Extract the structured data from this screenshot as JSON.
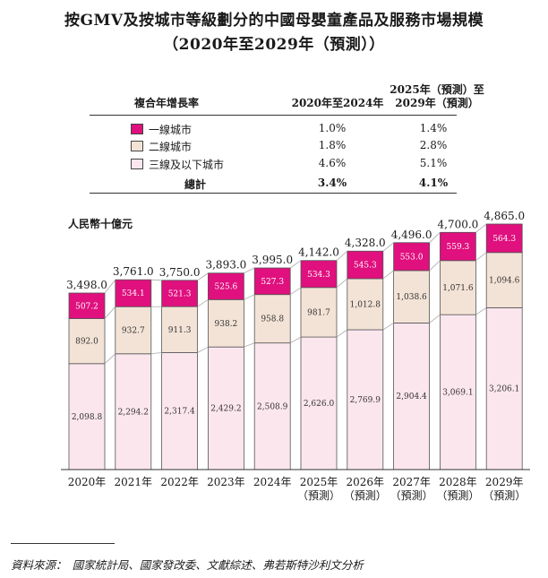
{
  "title_line1": "按GMV及按城市等級劃分的中國母嬰童產品及服務市場規模",
  "title_line2": "（2020年至2029年（預測））",
  "cagr_table": {
    "header_label": "複合年增長率",
    "col1_header": "2020年至2024年",
    "col2_header_line1": "2025年（預測）至",
    "col2_header_line2": "2029年（預測）",
    "rows": [
      {
        "label": "一線城市",
        "c1": "1.0%",
        "c2": "1.4%",
        "color": "#e0107e"
      },
      {
        "label": "二線城市",
        "c1": "1.8%",
        "c2": "2.8%",
        "color": "#f3e3d6"
      },
      {
        "label": "三線及以下城市",
        "c1": "4.6%",
        "c2": "5.1%",
        "color": "#fbe6ee"
      }
    ],
    "total": {
      "label": "總計",
      "c1": "3.4%",
      "c2": "4.1%"
    }
  },
  "unit_label": "人民幣十億元",
  "source": "資料來源：　國家統計局、國家發改委、文獻綜述、弗若斯特沙利文分析",
  "chart_data": {
    "type": "bar",
    "stacked": true,
    "title": "按GMV及按城市等級劃分的中國母嬰童產品及服務市場規模",
    "ylabel": "人民幣十億元",
    "categories": [
      "2020年",
      "2021年",
      "2022年",
      "2023年",
      "2024年",
      "2025年",
      "2026年",
      "2027年",
      "2028年",
      "2029年"
    ],
    "category_sublabels": [
      "",
      "",
      "",
      "",
      "",
      "（預測）",
      "（預測）",
      "（預測）",
      "（預測）",
      "（預測）"
    ],
    "series": [
      {
        "name": "三線及以下城市",
        "color": "#fbe6ee",
        "values": [
          2098.8,
          2294.2,
          2317.4,
          2429.2,
          2508.9,
          2626.0,
          2769.9,
          2904.4,
          3069.1,
          3206.1
        ],
        "labels": [
          "2,098.8",
          "2,294.2",
          "2,317.4",
          "2,429.2",
          "2,508.9",
          "2,626.0",
          "2,769.9",
          "2,904.4",
          "3,069.1",
          "3,206.1"
        ]
      },
      {
        "name": "二線城市",
        "color": "#f3e3d6",
        "values": [
          892.0,
          932.7,
          911.3,
          938.2,
          958.8,
          981.7,
          1012.8,
          1038.6,
          1071.6,
          1094.6
        ],
        "labels": [
          "892.0",
          "932.7",
          "911.3",
          "938.2",
          "958.8",
          "981.7",
          "1,012.8",
          "1,038.6",
          "1,071.6",
          "1,094.6"
        ]
      },
      {
        "name": "一線城市",
        "color": "#e0107e",
        "values": [
          507.2,
          534.1,
          521.3,
          525.6,
          527.3,
          534.3,
          545.3,
          553.0,
          559.3,
          564.3
        ],
        "labels": [
          "507.2",
          "534.1",
          "521.3",
          "525.6",
          "527.3",
          "534.3",
          "545.3",
          "553.0",
          "559.3",
          "564.3"
        ]
      }
    ],
    "totals": [
      3498.0,
      3761.0,
      3750.0,
      3893.0,
      3995.0,
      4142.0,
      4328.0,
      4496.0,
      4700.0,
      4865.0
    ],
    "total_labels": [
      "3,498.0",
      "3,761.0",
      "3,750.0",
      "3,893.0",
      "3,995.0",
      "4,142.0",
      "4,328.0",
      "4,496.0",
      "4,700.0",
      "4,865.0"
    ],
    "ylim": [
      0,
      4865.0
    ],
    "grid": false
  }
}
